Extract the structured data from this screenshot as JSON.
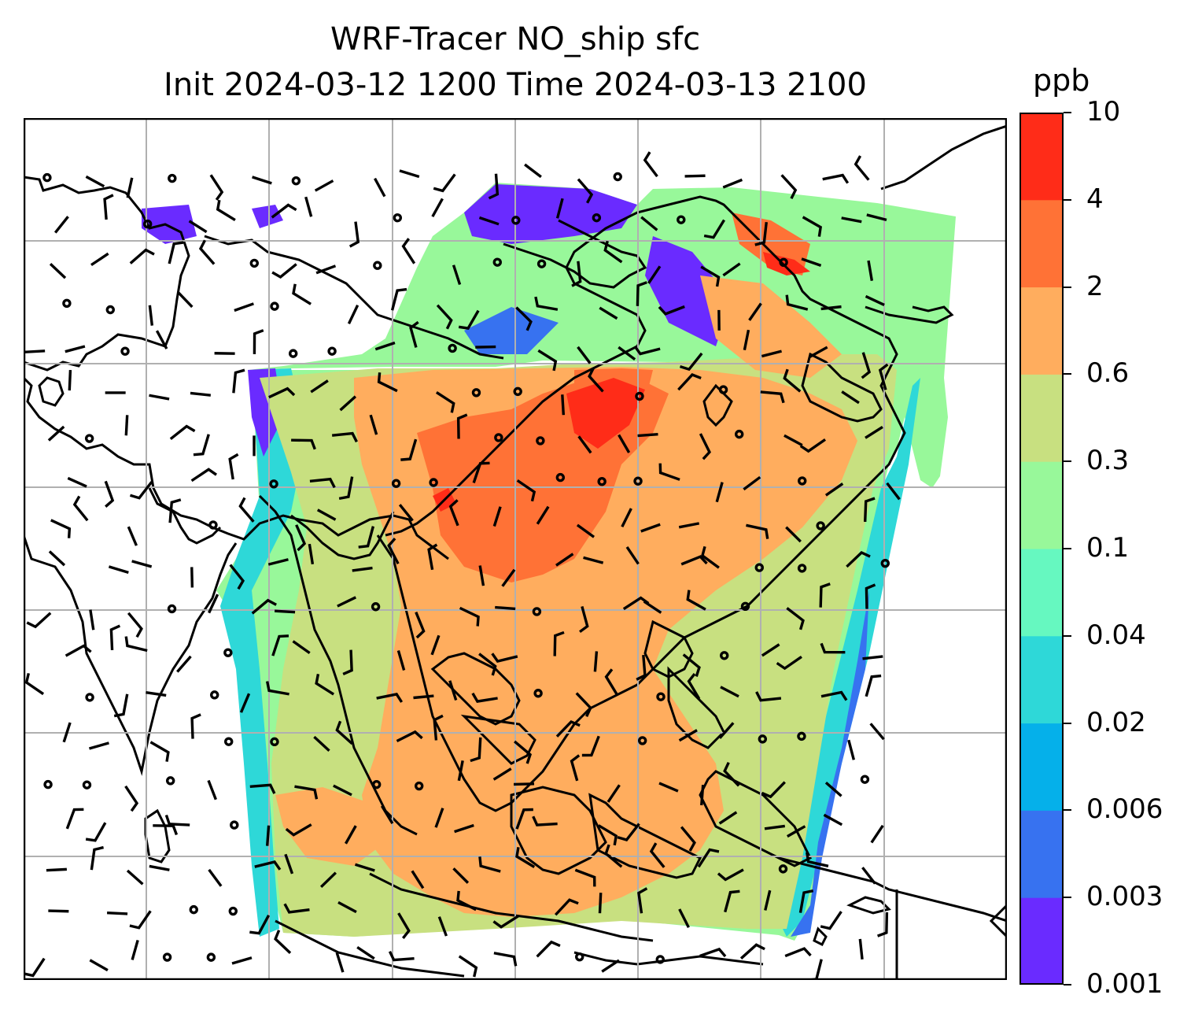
{
  "title_line1": "WRF-Tracer NO_ship sfc",
  "title_line2": "Init 2024-03-12 1200 Time 2024-03-13 2100",
  "colorbar": {
    "unit": "ppb",
    "levels": [
      "0.001",
      "0.003",
      "0.006",
      "0.02",
      "0.04",
      "0.1",
      "0.3",
      "0.6",
      "2",
      "4",
      "10"
    ],
    "colors": [
      "#6a2bff",
      "#3772f0",
      "#05b0ea",
      "#2ed8d8",
      "#66f8c0",
      "#98f89a",
      "#c8e080",
      "#ffad5e",
      "#ff7236",
      "#ff2c18"
    ]
  },
  "map": {
    "background": "#ffffff",
    "gridline_color": "#b0b0b0",
    "coastline_color": "#000000",
    "wind_barb_color": "#000000"
  }
}
